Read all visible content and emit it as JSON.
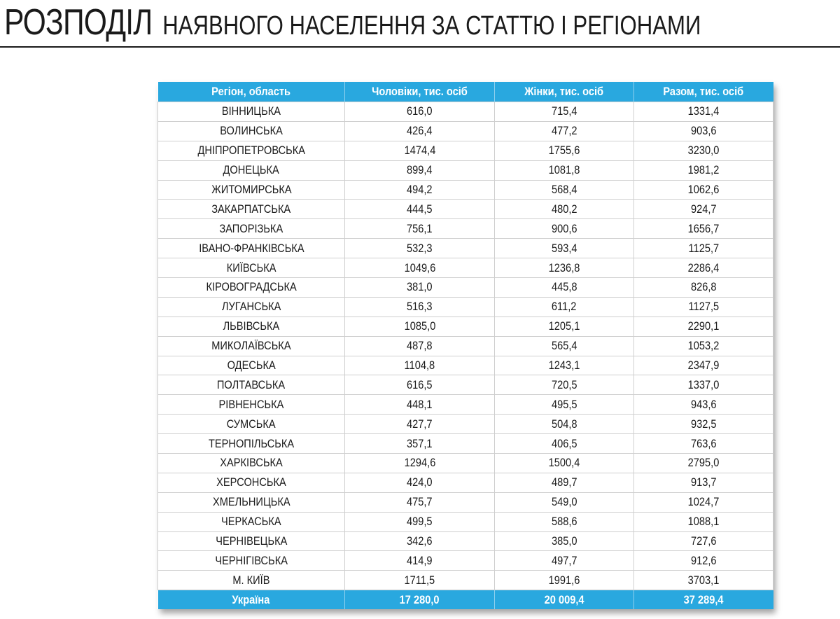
{
  "title": {
    "main": "РОЗПОДІЛ",
    "rest": "НАЯВНОГО НАСЕЛЕННЯ ЗА СТАТТЮ І РЕГІОНАМИ"
  },
  "colors": {
    "accent": "#29a8df"
  },
  "table": {
    "headers": [
      "Регіон, область",
      "Чоловіки, тис. осіб",
      "Жінки, тис. осіб",
      "Разом, тис. осіб"
    ],
    "rows": [
      [
        "ВІННИЦЬКА",
        "616,0",
        "715,4",
        "1331,4"
      ],
      [
        "ВОЛИНСЬКА",
        "426,4",
        "477,2",
        "903,6"
      ],
      [
        "ДНІПРОПЕТРОВСЬКА",
        "1474,4",
        "1755,6",
        "3230,0"
      ],
      [
        "ДОНЕЦЬКА",
        "899,4",
        "1081,8",
        "1981,2"
      ],
      [
        "ЖИТОМИРСЬКА",
        "494,2",
        "568,4",
        "1062,6"
      ],
      [
        "ЗАКАРПАТСЬКА",
        "444,5",
        "480,2",
        "924,7"
      ],
      [
        "ЗАПОРІЗЬКА",
        "756,1",
        "900,6",
        "1656,7"
      ],
      [
        "ІВАНО-ФРАНКІВСЬКА",
        "532,3",
        "593,4",
        "1125,7"
      ],
      [
        "КИЇВСЬКА",
        "1049,6",
        "1236,8",
        "2286,4"
      ],
      [
        "КІРОВОГРАДСЬКА",
        "381,0",
        "445,8",
        "826,8"
      ],
      [
        "ЛУГАНСЬКА",
        "516,3",
        "611,2",
        "1127,5"
      ],
      [
        "ЛЬВІВСЬКА",
        "1085,0",
        "1205,1",
        "2290,1"
      ],
      [
        "МИКОЛАЇВСЬКА",
        "487,8",
        "565,4",
        "1053,2"
      ],
      [
        "ОДЕСЬКА",
        "1104,8",
        "1243,1",
        "2347,9"
      ],
      [
        "ПОЛТАВСЬКА",
        "616,5",
        "720,5",
        "1337,0"
      ],
      [
        "РІВНЕНСЬКА",
        "448,1",
        "495,5",
        "943,6"
      ],
      [
        "СУМСЬКА",
        "427,7",
        "504,8",
        "932,5"
      ],
      [
        "ТЕРНОПІЛЬСЬКА",
        "357,1",
        "406,5",
        "763,6"
      ],
      [
        "ХАРКІВСЬКА",
        "1294,6",
        "1500,4",
        "2795,0"
      ],
      [
        "ХЕРСОНСЬКА",
        "424,0",
        "489,7",
        "913,7"
      ],
      [
        "ХМЕЛЬНИЦЬКА",
        "475,7",
        "549,0",
        "1024,7"
      ],
      [
        "ЧЕРКАСЬКА",
        "499,5",
        "588,6",
        "1088,1"
      ],
      [
        "ЧЕРНІВЕЦЬКА",
        "342,6",
        "385,0",
        "727,6"
      ],
      [
        "ЧЕРНІГІВСЬКА",
        "414,9",
        "497,7",
        "912,6"
      ],
      [
        "М. КИЇВ",
        "1711,5",
        "1991,6",
        "3703,1"
      ]
    ],
    "total": [
      "Україна",
      "17 280,0",
      "20 009,4",
      "37 289,4"
    ]
  }
}
